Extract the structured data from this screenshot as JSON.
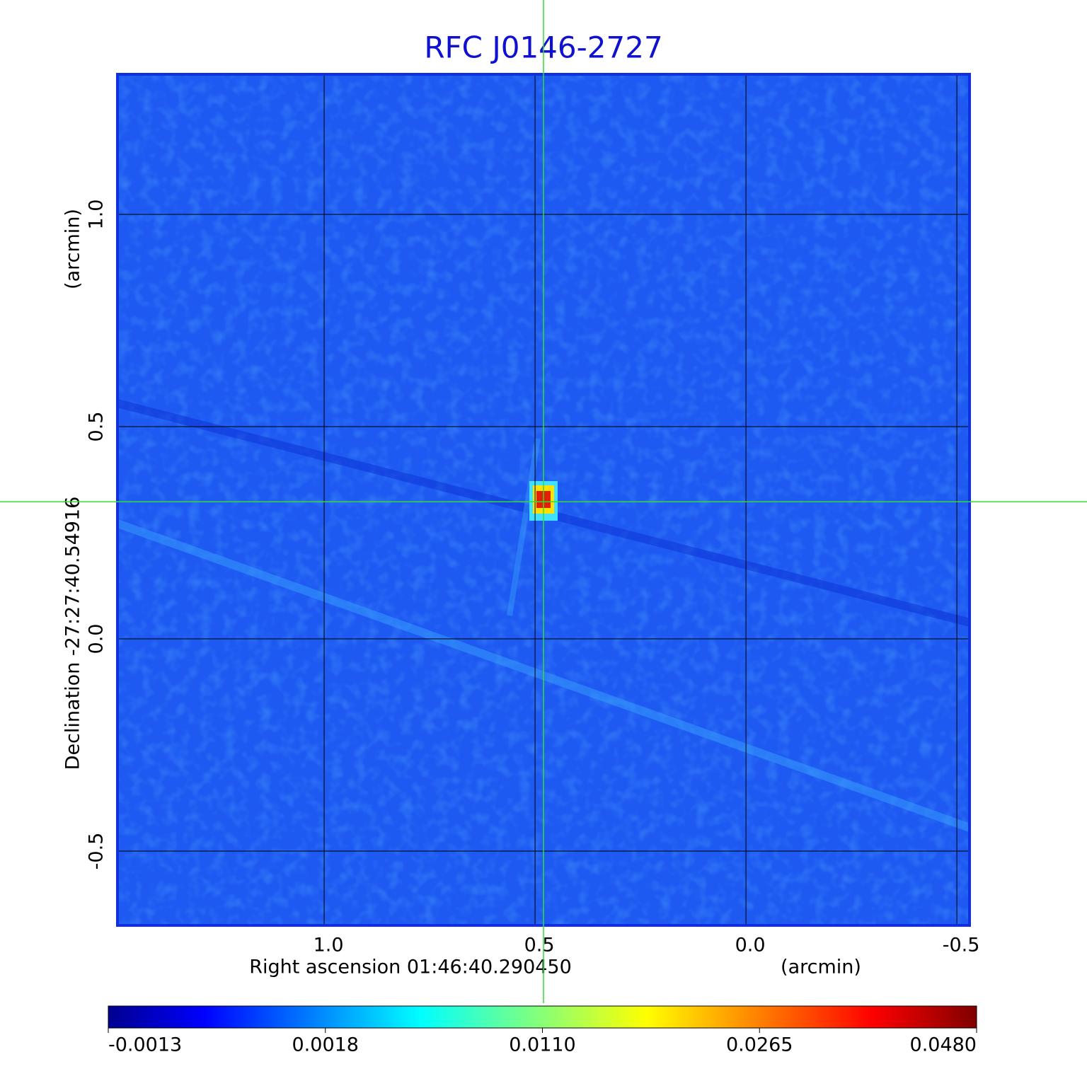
{
  "chart_data": {
    "type": "image",
    "title": "RFC J0146-2727",
    "xlabel": "Right ascension  01:46:40.290450",
    "xunit": "(arcmin)",
    "ylabel": "Declination  -27:27:40.54916",
    "yunit": "(arcmin)",
    "xlim": [
      1.49,
      -0.53
    ],
    "ylim": [
      -0.675,
      1.33
    ],
    "xticks": [
      {
        "value": 1.0,
        "label": "1.0"
      },
      0.5,
      {
        "value": 0.0,
        "label": "0.0"
      },
      -0.5
    ],
    "yticks": [
      -0.5,
      {
        "value": 0.0,
        "label": "0.0"
      },
      0.5,
      {
        "value": 1.0,
        "label": "1.0"
      }
    ],
    "grid": true,
    "crosshair": {
      "x": 0.48,
      "y": 0.323,
      "color": "#33dd33"
    },
    "colormap": "jet",
    "colorbar_ticks": [
      -0.0013,
      0.0018,
      {
        "value": 0.011,
        "label": "0.0110"
      },
      0.0265,
      {
        "value": 0.048,
        "label": "0.0480"
      }
    ]
  }
}
